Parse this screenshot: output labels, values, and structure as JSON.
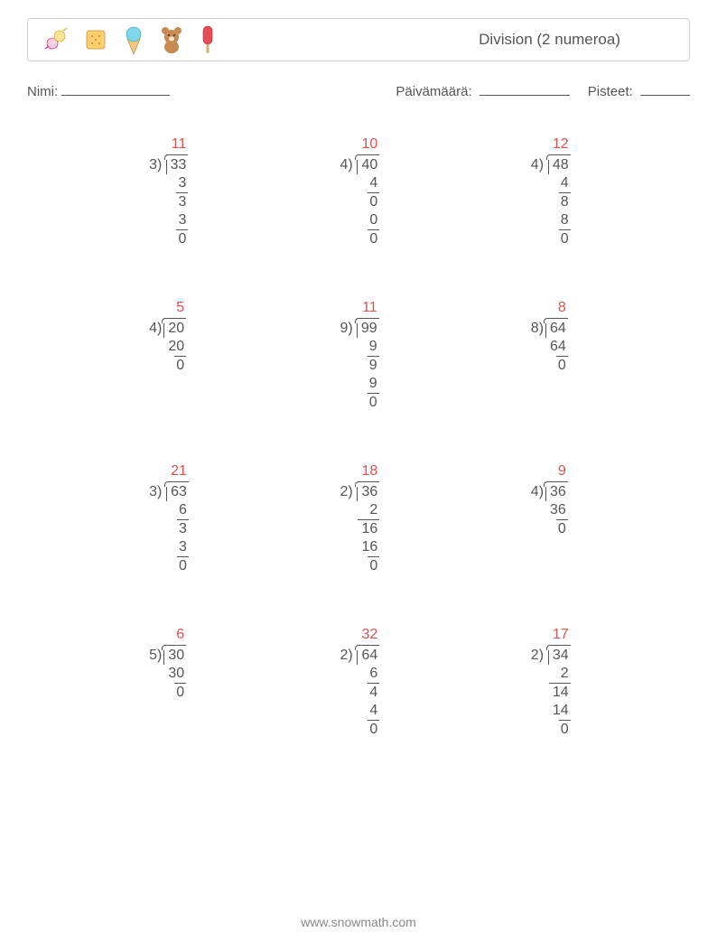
{
  "header": {
    "title": "Division (2 numeroa)",
    "icons": [
      "candy",
      "cracker",
      "icecream",
      "bear",
      "popsicle"
    ]
  },
  "labels": {
    "name": "Nimi:",
    "date": "Päivämäärä:",
    "score": "Pisteet:"
  },
  "colors": {
    "quotient": "#d9534f",
    "text": "#555555",
    "border": "#cccccc",
    "background": "#ffffff"
  },
  "fontsize": {
    "body": 16,
    "title": 17,
    "labels": 15,
    "footer": 14
  },
  "problems": [
    {
      "divisor": "3",
      "dividend": "33",
      "quotient": "11",
      "steps": [
        {
          "val": "3",
          "rule": false,
          "w": "1"
        },
        {
          "val": "3",
          "rule": true,
          "w": "1"
        },
        {
          "val": "3",
          "rule": false,
          "w": "1"
        },
        {
          "val": "0",
          "rule": true,
          "w": "1"
        }
      ]
    },
    {
      "divisor": "4",
      "dividend": "40",
      "quotient": "10",
      "steps": [
        {
          "val": "4",
          "rule": false,
          "w": "1"
        },
        {
          "val": "0",
          "rule": true,
          "w": "1"
        },
        {
          "val": "0",
          "rule": false,
          "w": "1"
        },
        {
          "val": "0",
          "rule": true,
          "w": "1"
        }
      ]
    },
    {
      "divisor": "4",
      "dividend": "48",
      "quotient": "12",
      "steps": [
        {
          "val": "4",
          "rule": false,
          "w": "1"
        },
        {
          "val": "8",
          "rule": true,
          "w": "1"
        },
        {
          "val": "8",
          "rule": false,
          "w": "1"
        },
        {
          "val": "0",
          "rule": true,
          "w": "1"
        }
      ]
    },
    {
      "divisor": "4",
      "dividend": "20",
      "quotient": "5",
      "steps": [
        {
          "val": "20",
          "rule": false,
          "w": "2"
        },
        {
          "val": "0",
          "rule": true,
          "w": "1"
        }
      ]
    },
    {
      "divisor": "9",
      "dividend": "99",
      "quotient": "11",
      "steps": [
        {
          "val": "9",
          "rule": false,
          "w": "1"
        },
        {
          "val": "9",
          "rule": true,
          "w": "1"
        },
        {
          "val": "9",
          "rule": false,
          "w": "1"
        },
        {
          "val": "0",
          "rule": true,
          "w": "1"
        }
      ]
    },
    {
      "divisor": "8",
      "dividend": "64",
      "quotient": "8",
      "steps": [
        {
          "val": "64",
          "rule": false,
          "w": "2"
        },
        {
          "val": "0",
          "rule": true,
          "w": "1"
        }
      ]
    },
    {
      "divisor": "3",
      "dividend": "63",
      "quotient": "21",
      "steps": [
        {
          "val": "6",
          "rule": false,
          "w": "1"
        },
        {
          "val": "3",
          "rule": true,
          "w": "1"
        },
        {
          "val": "3",
          "rule": false,
          "w": "1"
        },
        {
          "val": "0",
          "rule": true,
          "w": "1"
        }
      ]
    },
    {
      "divisor": "2",
      "dividend": "36",
      "quotient": "18",
      "steps": [
        {
          "val": "2",
          "rule": false,
          "w": "1"
        },
        {
          "val": "16",
          "rule": true,
          "w": "2"
        },
        {
          "val": "16",
          "rule": false,
          "w": "2"
        },
        {
          "val": "0",
          "rule": true,
          "w": "1"
        }
      ]
    },
    {
      "divisor": "4",
      "dividend": "36",
      "quotient": "9",
      "steps": [
        {
          "val": "36",
          "rule": false,
          "w": "2"
        },
        {
          "val": "0",
          "rule": true,
          "w": "1"
        }
      ]
    },
    {
      "divisor": "5",
      "dividend": "30",
      "quotient": "6",
      "steps": [
        {
          "val": "30",
          "rule": false,
          "w": "2"
        },
        {
          "val": "0",
          "rule": true,
          "w": "1"
        }
      ]
    },
    {
      "divisor": "2",
      "dividend": "64",
      "quotient": "32",
      "steps": [
        {
          "val": "6",
          "rule": false,
          "w": "1"
        },
        {
          "val": "4",
          "rule": true,
          "w": "1"
        },
        {
          "val": "4",
          "rule": false,
          "w": "1"
        },
        {
          "val": "0",
          "rule": true,
          "w": "1"
        }
      ]
    },
    {
      "divisor": "2",
      "dividend": "34",
      "quotient": "17",
      "steps": [
        {
          "val": "2",
          "rule": false,
          "w": "1"
        },
        {
          "val": "14",
          "rule": true,
          "w": "2"
        },
        {
          "val": "14",
          "rule": false,
          "w": "2"
        },
        {
          "val": "0",
          "rule": true,
          "w": "1"
        }
      ]
    }
  ],
  "footer": "www.snowmath.com"
}
